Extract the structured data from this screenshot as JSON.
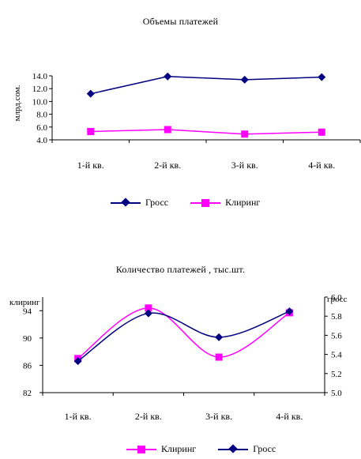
{
  "colors": {
    "gross": "#000080",
    "clearing": "#ff00ff"
  },
  "chart_data": [
    {
      "type": "line",
      "title": "Объемы платежей",
      "ylabel": "млрд.сом.",
      "xlabel": "",
      "categories": [
        "1-й кв.",
        "2-й кв.",
        "3-й кв.",
        "4-й кв."
      ],
      "ylim": [
        4.0,
        14.0
      ],
      "yticks": [
        "4.0",
        "6.0",
        "8.0",
        "10.0",
        "12.0",
        "14.0"
      ],
      "grid": false,
      "legend_position": "bottom",
      "series": [
        {
          "name": "Гросс",
          "values": [
            11.2,
            13.9,
            13.4,
            13.8
          ],
          "marker": "diamond",
          "color": "#000080"
        },
        {
          "name": "Клиринг",
          "values": [
            5.3,
            5.6,
            4.9,
            5.2
          ],
          "marker": "square",
          "color": "#ff00ff"
        }
      ]
    },
    {
      "type": "line",
      "title": "Количество платежей , тыс.шт.",
      "ylabel_left": "клиринг",
      "ylabel_right": "гросс",
      "categories": [
        "1-й кв.",
        "2-й кв.",
        "3-й кв.",
        "4-й кв."
      ],
      "ylim_left": [
        82,
        96
      ],
      "yticks_left": [
        "82",
        "86",
        "90",
        "94"
      ],
      "ylim_right": [
        5.0,
        6.0
      ],
      "yticks_right": [
        "5.0",
        "5.2",
        "5.4",
        "5.6",
        "5.8",
        "6.0"
      ],
      "grid": false,
      "smooth": true,
      "legend_position": "bottom",
      "series": [
        {
          "name": "Клиринг",
          "axis": "left",
          "values": [
            87.0,
            94.4,
            87.2,
            93.7
          ],
          "marker": "square",
          "color": "#ff00ff"
        },
        {
          "name": "Гросс",
          "axis": "right",
          "values": [
            5.33,
            5.83,
            5.58,
            5.85
          ],
          "marker": "diamond",
          "color": "#000080"
        }
      ]
    }
  ]
}
